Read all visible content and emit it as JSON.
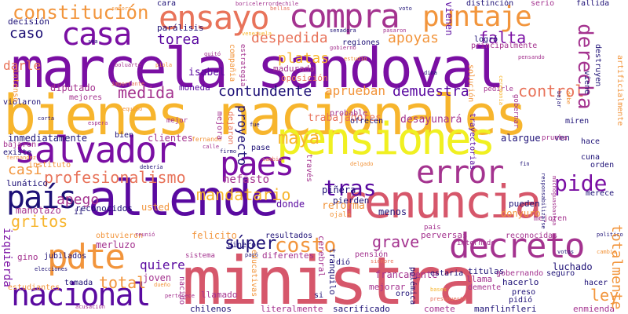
{
  "palette": {
    "purple": "#7a0fa3",
    "deep_purple": "#5a0aa0",
    "navy": "#1d1076",
    "magenta": "#a4338f",
    "rose": "#d6576b",
    "coral": "#e8735a",
    "orange": "#f2953c",
    "amber": "#f7b52d",
    "yellow": "#f0f021"
  },
  "words": {
    "marcela_sandoval": "marcela sandoval",
    "bienes_nacionales": "bienes nacionales",
    "ministra": "ministra",
    "allende": "allende",
    "renuncia": "renuncia",
    "pensiones": "pensiones",
    "salvador": "salvador",
    "ensayo": "ensayo",
    "compra": "compra",
    "puntaje": "puntaje",
    "casa": "casa",
    "pdte": "pdte",
    "nacional": "nacional",
    "decreto": "decreto",
    "pais": "país",
    "paes": "paes",
    "error": "error",
    "constitucion": "constitución",
    "costo": "costo",
    "tras": "tras",
    "pide": "pide",
    "maya": "maya",
    "profesionalismo": "profesionalismo",
    "mandatario": "mandatario",
    "despedida": "despedida",
    "apoyas": "apoyas",
    "falta": "falta",
    "torea": "torea",
    "medida": "medida",
    "contundente": "contundente",
    "demuestra": "demuestra",
    "control": "control",
    "platas": "platas",
    "aprueban": "aprueban",
    "caso": "caso",
    "casi": "casi",
    "gritos": "gritos",
    "apego": "apego",
    "super": "súper",
    "grave": "grave",
    "ley": "ley",
    "total": "total",
    "quiere": "quiere",
    "totalmente": "totalmente",
    "derecha": "derecha",
    "decision": "decisión",
    "darle": "darle",
    "paralisis": "parálisis",
    "isabel": "isabel",
    "proyecto": "proyecto",
    "nefasto": "nefasto",
    "reforma": "reforma",
    "trabajadores": "trabajadores",
    "desayunara": "desayunará",
    "inmediatamente": "inmediatamente",
    "lunatico": "lunático",
    "manotazo": "manotazo",
    "izquierda": "izquierda",
    "estudiantes": "estudiantes",
    "chilenos": "chilenos",
    "literalmente": "literalmente",
    "sacrificado": "sacrificado",
    "comete": "comete",
    "manflinfleri": "manflinfleri",
    "enmienda": "enmienda",
    "diputado": "diputado",
    "moneda": "moneda",
    "cambiarse": "cambiarse",
    "madurado": "madurado",
    "oposicion": "oposición",
    "clientes": "clientes",
    "bien": "bien",
    "donde": "donde",
    "menos": "menos",
    "pinera": "piñera",
    "pierden": "pierden",
    "donyuro": "donyuro",
    "pueden": "pueden",
    "alargue": "alargue",
    "ven": "ven",
    "hace": "hace",
    "cuna": "cuna",
    "mejoren": "mejoren",
    "merluzo": "merluzo",
    "felicito": "felicito",
    "resultados": "resultados",
    "perversas": "perversas",
    "francamente": "francamente",
    "luchado": "luchado",
    "joven": "joven",
    "usted": "usted",
    "reconocidos": "reconocidos",
    "obtuvieron": "obtuvieron",
    "tomada": "tomada",
    "llamado": "llamado",
    "gino": "gino",
    "jubilados": "jubilados",
    "dinero": "dinero",
    "diferentes": "diferentes",
    "mejorar": "mejorar",
    "oro": "oro",
    "titulas": "titulas",
    "llama": "llama",
    "hacerlo": "hacerlo",
    "gobernando": "gobernando",
    "seguro": "seguro",
    "preso": "preso",
    "pidio": "pidió",
    "demente": "demente",
    "pension": "pensión",
    "estaria": "estaria",
    "hacer": "hacer",
    "internado": "internado",
    "principalmente": "principalmente",
    "regiones": "regiones",
    "distincion": "distinción",
    "logro": "logró",
    "serio": "serio",
    "fallida": "fallida",
    "viene": "viene",
    "vienen": "vienen",
    "intenso": "intenso",
    "violaron": "violaron",
    "bajaron": "bajaron",
    "existe": "existe",
    "instituto": "instituto",
    "destruyen": "destruyen",
    "solucion": "solución",
    "cara": "cara",
    "mejores": "mejores",
    "mejor": "mejor",
    "miren": "miren",
    "pase": "pase",
    "bajar": "bajar",
    "debe": "debe",
    "orden": "orden",
    "fin": "fin",
    "merece": "merece",
    "pais_bottom": "pais",
    "dio": "dió",
    "cerebral": "cerebral",
    "tranquilo": "tranquilo",
    "traves": "través",
    "ojala": "ojalá",
    "reconocidas": "reconocidas",
    "sistema": "sistema",
    "nacido": "nacido",
    "educativas": "educativas",
    "si": "si",
    "polemica": "polémica",
    "probable": "probable",
    "ofrecen": "ofrecen",
    "mejora": "mejora",
    "dejaron": "dejaron",
    "prueba": "prueba",
    "trayectorias": "trayectorias",
    "compania": "compañia",
    "estrategia": "estrategia",
    "artificialmente": "artificialmente",
    "ii": "ii",
    "boricelerrordechile": "boricelerrordechile",
    "senadora": "senadora",
    "senora": "señora",
    "venezuela": "venezuela",
    "bellas": "bellas",
    "pasaron": "pasaron",
    "voto": "voto",
    "sea": "sea",
    "boluarte": "boluarte",
    "piola": "piola",
    "importante": "importante",
    "corta": "corta",
    "espera": "espera",
    "fernandez": "fernandez",
    "fernando": "fernando",
    "calle": "calle",
    "firmo": "firmo",
    "cambio": "cambio",
    "delgado": "delgado",
    "deberia": "debería",
    "pedirle": "pedirle",
    "gobernar": "gobernar",
    "ceremonia": "ceremonia",
    "reunio": "reunió",
    "responsabilizarse": "responsabilizarse",
    "muchoguasbanega": "muchoguasbanega",
    "politico": "politico",
    "bases": "bases",
    "pago": "pagó",
    "siempre": "siempre",
    "dina": "dina",
    "estudio": "estudio",
    "quito": "quitó",
    "presupuesto": "presupuesto",
    "pertenece": "pertenece",
    "elecciones": "elecciones",
    "dueno": "dueño",
    "pensando": "pensando",
    "gobierno": "gobierno",
    "votos": "votos",
    "cambia": "cambia",
    "acusacion": "acusación",
    "fue": "fue",
    "equipo": "equipo"
  }
}
